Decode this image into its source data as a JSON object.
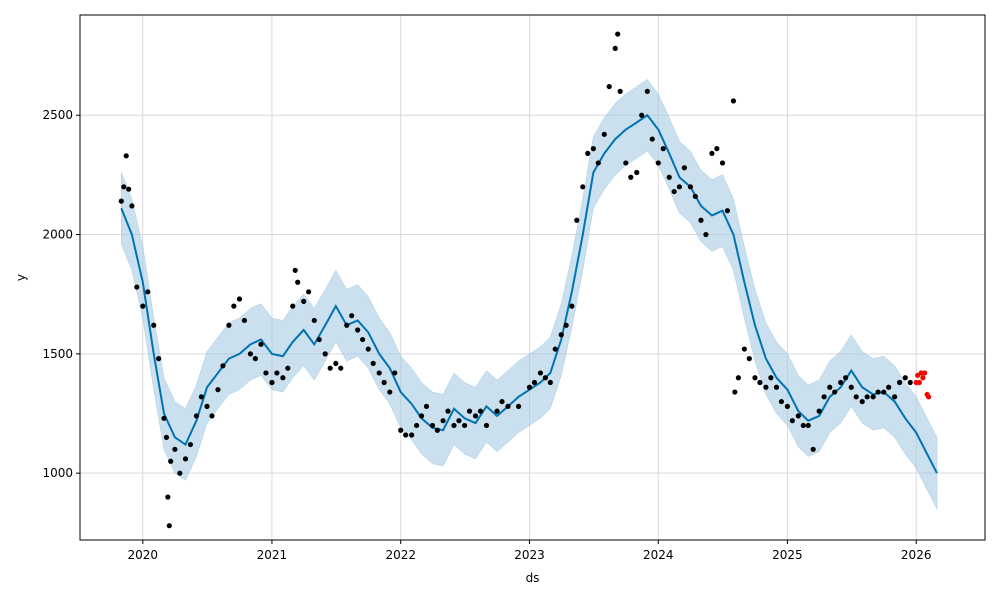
{
  "chart_data": {
    "type": "line",
    "title": "",
    "xlabel": "ds",
    "ylabel": "y",
    "x_ticks": [
      "2020",
      "2021",
      "2022",
      "2023",
      "2024",
      "2025",
      "2026"
    ],
    "y_ticks": [
      "1000",
      "1500",
      "2000",
      "2500"
    ],
    "xlim": [
      "2019-07-07",
      "2026-07-15"
    ],
    "ylim": [
      720,
      2920
    ],
    "grid": true,
    "colors": {
      "forecast_line": "#0072b2",
      "uncertainty_band": "#a6cbe3",
      "observed_points": "#000000",
      "recent_points": "#ff0000",
      "grid": "#d9d9d9"
    },
    "series": [
      {
        "kind": "forecast",
        "points": [
          [
            "2019-11-01",
            2110
          ],
          [
            "2019-12-01",
            2000
          ],
          [
            "2020-01-01",
            1800
          ],
          [
            "2020-02-01",
            1500
          ],
          [
            "2020-03-01",
            1250
          ],
          [
            "2020-04-01",
            1150
          ],
          [
            "2020-05-01",
            1120
          ],
          [
            "2020-06-01",
            1220
          ],
          [
            "2020-07-01",
            1360
          ],
          [
            "2020-08-01",
            1420
          ],
          [
            "2020-09-01",
            1480
          ],
          [
            "2020-10-01",
            1500
          ],
          [
            "2020-11-01",
            1540
          ],
          [
            "2020-12-01",
            1560
          ],
          [
            "2021-01-01",
            1500
          ],
          [
            "2021-02-01",
            1490
          ],
          [
            "2021-03-01",
            1550
          ],
          [
            "2021-04-01",
            1600
          ],
          [
            "2021-05-01",
            1540
          ],
          [
            "2021-06-01",
            1620
          ],
          [
            "2021-07-01",
            1700
          ],
          [
            "2021-08-01",
            1620
          ],
          [
            "2021-09-01",
            1640
          ],
          [
            "2021-10-01",
            1590
          ],
          [
            "2021-11-01",
            1500
          ],
          [
            "2021-12-01",
            1440
          ],
          [
            "2022-01-01",
            1340
          ],
          [
            "2022-02-01",
            1290
          ],
          [
            "2022-03-01",
            1230
          ],
          [
            "2022-04-01",
            1190
          ],
          [
            "2022-05-01",
            1180
          ],
          [
            "2022-06-01",
            1270
          ],
          [
            "2022-07-01",
            1230
          ],
          [
            "2022-08-01",
            1210
          ],
          [
            "2022-09-01",
            1280
          ],
          [
            "2022-10-01",
            1240
          ],
          [
            "2022-11-01",
            1280
          ],
          [
            "2022-12-01",
            1320
          ],
          [
            "2023-01-01",
            1350
          ],
          [
            "2023-02-01",
            1380
          ],
          [
            "2023-03-01",
            1420
          ],
          [
            "2023-04-01",
            1560
          ],
          [
            "2023-05-01",
            1760
          ],
          [
            "2023-06-01",
            2000
          ],
          [
            "2023-07-01",
            2260
          ],
          [
            "2023-08-01",
            2340
          ],
          [
            "2023-09-01",
            2400
          ],
          [
            "2023-10-01",
            2440
          ],
          [
            "2023-11-01",
            2470
          ],
          [
            "2023-12-01",
            2500
          ],
          [
            "2024-01-01",
            2440
          ],
          [
            "2024-02-01",
            2340
          ],
          [
            "2024-03-01",
            2240
          ],
          [
            "2024-04-01",
            2200
          ],
          [
            "2024-05-01",
            2120
          ],
          [
            "2024-06-01",
            2080
          ],
          [
            "2024-07-01",
            2100
          ],
          [
            "2024-08-01",
            2000
          ],
          [
            "2024-09-01",
            1800
          ],
          [
            "2024-10-01",
            1620
          ],
          [
            "2024-11-01",
            1480
          ],
          [
            "2024-12-01",
            1400
          ],
          [
            "2025-01-01",
            1350
          ],
          [
            "2025-02-01",
            1260
          ],
          [
            "2025-03-01",
            1220
          ],
          [
            "2025-04-01",
            1240
          ],
          [
            "2025-05-01",
            1320
          ],
          [
            "2025-06-01",
            1360
          ],
          [
            "2025-07-01",
            1430
          ],
          [
            "2025-08-01",
            1360
          ],
          [
            "2025-09-01",
            1330
          ],
          [
            "2025-10-01",
            1340
          ],
          [
            "2025-11-01",
            1300
          ],
          [
            "2025-12-01",
            1230
          ],
          [
            "2026-01-01",
            1170
          ],
          [
            "2026-02-01",
            1080
          ],
          [
            "2026-03-01",
            1000
          ]
        ],
        "band_halfwidth": 150
      },
      {
        "kind": "observed",
        "points": [
          [
            "2019-11-01",
            2140
          ],
          [
            "2019-11-08",
            2200
          ],
          [
            "2019-11-15",
            2330
          ],
          [
            "2019-11-22",
            2190
          ],
          [
            "2019-12-01",
            2120
          ],
          [
            "2019-12-15",
            1780
          ],
          [
            "2020-01-01",
            1700
          ],
          [
            "2020-01-15",
            1760
          ],
          [
            "2020-02-01",
            1620
          ],
          [
            "2020-02-15",
            1480
          ],
          [
            "2020-03-01",
            1230
          ],
          [
            "2020-03-08",
            1150
          ],
          [
            "2020-03-12",
            900
          ],
          [
            "2020-03-16",
            780
          ],
          [
            "2020-03-20",
            1050
          ],
          [
            "2020-04-01",
            1100
          ],
          [
            "2020-04-15",
            1000
          ],
          [
            "2020-05-01",
            1060
          ],
          [
            "2020-05-15",
            1120
          ],
          [
            "2020-06-01",
            1240
          ],
          [
            "2020-06-15",
            1320
          ],
          [
            "2020-07-01",
            1280
          ],
          [
            "2020-07-15",
            1240
          ],
          [
            "2020-08-01",
            1350
          ],
          [
            "2020-08-15",
            1450
          ],
          [
            "2020-09-01",
            1620
          ],
          [
            "2020-09-15",
            1700
          ],
          [
            "2020-10-01",
            1730
          ],
          [
            "2020-10-15",
            1640
          ],
          [
            "2020-11-01",
            1500
          ],
          [
            "2020-11-15",
            1480
          ],
          [
            "2020-12-01",
            1540
          ],
          [
            "2020-12-15",
            1420
          ],
          [
            "2021-01-01",
            1380
          ],
          [
            "2021-01-15",
            1420
          ],
          [
            "2021-02-01",
            1400
          ],
          [
            "2021-02-15",
            1440
          ],
          [
            "2021-03-01",
            1700
          ],
          [
            "2021-03-08",
            1850
          ],
          [
            "2021-03-15",
            1800
          ],
          [
            "2021-04-01",
            1720
          ],
          [
            "2021-04-15",
            1760
          ],
          [
            "2021-05-01",
            1640
          ],
          [
            "2021-05-15",
            1560
          ],
          [
            "2021-06-01",
            1500
          ],
          [
            "2021-06-15",
            1440
          ],
          [
            "2021-07-01",
            1460
          ],
          [
            "2021-07-15",
            1440
          ],
          [
            "2021-08-01",
            1620
          ],
          [
            "2021-08-15",
            1660
          ],
          [
            "2021-09-01",
            1600
          ],
          [
            "2021-09-15",
            1560
          ],
          [
            "2021-10-01",
            1520
          ],
          [
            "2021-10-15",
            1460
          ],
          [
            "2021-11-01",
            1420
          ],
          [
            "2021-11-15",
            1380
          ],
          [
            "2021-12-01",
            1340
          ],
          [
            "2021-12-15",
            1420
          ],
          [
            "2022-01-01",
            1180
          ],
          [
            "2022-01-15",
            1160
          ],
          [
            "2022-02-01",
            1160
          ],
          [
            "2022-02-15",
            1200
          ],
          [
            "2022-03-01",
            1240
          ],
          [
            "2022-03-15",
            1280
          ],
          [
            "2022-04-01",
            1200
          ],
          [
            "2022-04-15",
            1180
          ],
          [
            "2022-05-01",
            1220
          ],
          [
            "2022-05-15",
            1260
          ],
          [
            "2022-06-01",
            1200
          ],
          [
            "2022-06-15",
            1220
          ],
          [
            "2022-07-01",
            1200
          ],
          [
            "2022-07-15",
            1260
          ],
          [
            "2022-08-01",
            1240
          ],
          [
            "2022-08-15",
            1260
          ],
          [
            "2022-09-01",
            1200
          ],
          [
            "2022-10-01",
            1260
          ],
          [
            "2022-10-15",
            1300
          ],
          [
            "2022-11-01",
            1280
          ],
          [
            "2022-12-01",
            1280
          ],
          [
            "2023-01-01",
            1360
          ],
          [
            "2023-01-15",
            1380
          ],
          [
            "2023-02-01",
            1420
          ],
          [
            "2023-02-15",
            1400
          ],
          [
            "2023-03-01",
            1380
          ],
          [
            "2023-03-15",
            1520
          ],
          [
            "2023-04-01",
            1580
          ],
          [
            "2023-04-15",
            1620
          ],
          [
            "2023-05-01",
            1700
          ],
          [
            "2023-05-15",
            2060
          ],
          [
            "2023-06-01",
            2200
          ],
          [
            "2023-06-15",
            2340
          ],
          [
            "2023-07-01",
            2360
          ],
          [
            "2023-07-15",
            2300
          ],
          [
            "2023-08-01",
            2420
          ],
          [
            "2023-08-15",
            2620
          ],
          [
            "2023-09-01",
            2780
          ],
          [
            "2023-09-08",
            2840
          ],
          [
            "2023-09-15",
            2600
          ],
          [
            "2023-10-01",
            2300
          ],
          [
            "2023-10-15",
            2240
          ],
          [
            "2023-11-01",
            2260
          ],
          [
            "2023-11-15",
            2500
          ],
          [
            "2023-12-01",
            2600
          ],
          [
            "2023-12-15",
            2400
          ],
          [
            "2024-01-01",
            2300
          ],
          [
            "2024-01-15",
            2360
          ],
          [
            "2024-02-01",
            2240
          ],
          [
            "2024-02-15",
            2180
          ],
          [
            "2024-03-01",
            2200
          ],
          [
            "2024-03-15",
            2280
          ],
          [
            "2024-04-01",
            2200
          ],
          [
            "2024-04-15",
            2160
          ],
          [
            "2024-05-01",
            2060
          ],
          [
            "2024-05-15",
            2000
          ],
          [
            "2024-06-01",
            2340
          ],
          [
            "2024-06-15",
            2360
          ],
          [
            "2024-07-01",
            2300
          ],
          [
            "2024-07-15",
            2100
          ],
          [
            "2024-08-01",
            2560
          ],
          [
            "2024-08-05",
            1340
          ],
          [
            "2024-08-15",
            1400
          ],
          [
            "2024-09-01",
            1520
          ],
          [
            "2024-09-15",
            1480
          ],
          [
            "2024-10-01",
            1400
          ],
          [
            "2024-10-15",
            1380
          ],
          [
            "2024-11-01",
            1360
          ],
          [
            "2024-11-15",
            1400
          ],
          [
            "2024-12-01",
            1360
          ],
          [
            "2024-12-15",
            1300
          ],
          [
            "2025-01-01",
            1280
          ],
          [
            "2025-01-15",
            1220
          ],
          [
            "2025-02-01",
            1240
          ],
          [
            "2025-02-15",
            1200
          ],
          [
            "2025-03-01",
            1200
          ],
          [
            "2025-03-15",
            1100
          ],
          [
            "2025-04-01",
            1260
          ],
          [
            "2025-04-15",
            1320
          ],
          [
            "2025-05-01",
            1360
          ],
          [
            "2025-05-15",
            1340
          ],
          [
            "2025-06-01",
            1380
          ],
          [
            "2025-06-15",
            1400
          ],
          [
            "2025-07-01",
            1360
          ],
          [
            "2025-07-15",
            1320
          ],
          [
            "2025-08-01",
            1300
          ],
          [
            "2025-08-15",
            1320
          ],
          [
            "2025-09-01",
            1320
          ],
          [
            "2025-09-15",
            1340
          ],
          [
            "2025-10-01",
            1340
          ],
          [
            "2025-10-15",
            1360
          ],
          [
            "2025-11-01",
            1320
          ],
          [
            "2025-11-15",
            1380
          ],
          [
            "2025-12-01",
            1400
          ],
          [
            "2025-12-15",
            1380
          ]
        ]
      },
      {
        "kind": "recent",
        "points": [
          [
            "2026-01-01",
            1380
          ],
          [
            "2026-01-05",
            1410
          ],
          [
            "2026-01-10",
            1380
          ],
          [
            "2026-01-15",
            1420
          ],
          [
            "2026-01-20",
            1400
          ],
          [
            "2026-01-25",
            1420
          ],
          [
            "2026-02-01",
            1330
          ],
          [
            "2026-02-05",
            1320
          ]
        ]
      }
    ]
  }
}
